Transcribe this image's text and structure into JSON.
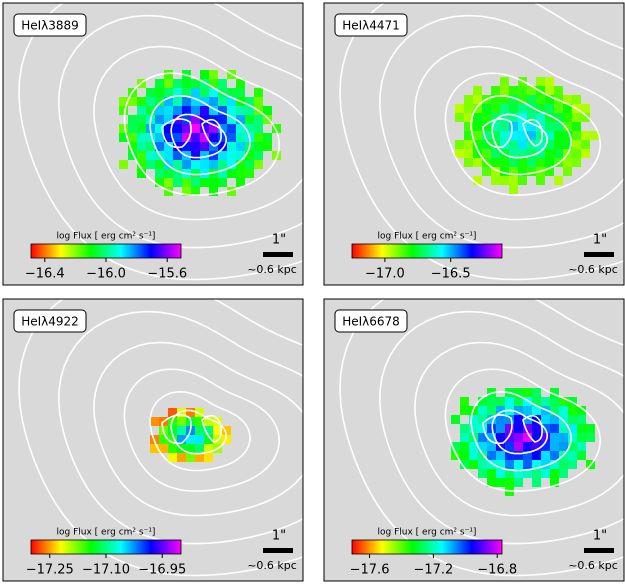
{
  "chart_data": [
    {
      "type": "image",
      "label": "HeIλ3889",
      "colorbar_label": "log  Flux [ erg cm² s⁻¹]",
      "clim": [
        -16.49,
        -15.51
      ],
      "cticks": [
        {
          "value": -16.4,
          "label": "−16.4"
        },
        {
          "value": -16.0,
          "label": "−16.0"
        },
        {
          "value": -15.6,
          "label": "−15.6"
        }
      ],
      "cmap_colors": [
        "#ff0000",
        "#ffff00",
        "#00ff00",
        "#00ffff",
        "#0000ff",
        "#ff00ff"
      ],
      "scalebar_label": "1\"",
      "scale_text": "~0.6 kpc"
    },
    {
      "type": "image",
      "label": "HeIλ4471",
      "colorbar_label": "log  Flux [ erg cm² s⁻¹]",
      "clim": [
        -17.25,
        -16.11
      ],
      "cticks": [
        {
          "value": -17.0,
          "label": "−17.0"
        },
        {
          "value": -16.5,
          "label": "−16.5"
        }
      ],
      "cmap_colors": [
        "#ff0000",
        "#ffff00",
        "#00ff00",
        "#00ffff",
        "#0000ff",
        "#ff00ff"
      ],
      "scalebar_label": "1\"",
      "scale_text": "~0.6 kpc"
    },
    {
      "type": "image",
      "label": "HeIλ4922",
      "colorbar_label": "log  Flux [ erg cm² s⁻¹]",
      "clim": [
        -17.3,
        -16.9
      ],
      "cticks": [
        {
          "value": -17.25,
          "label": "−17.25"
        },
        {
          "value": -17.1,
          "label": "−17.10"
        },
        {
          "value": -16.95,
          "label": "−16.95"
        }
      ],
      "cmap_colors": [
        "#ff0000",
        "#ffff00",
        "#00ff00",
        "#00ffff",
        "#0000ff",
        "#ff00ff"
      ],
      "scalebar_label": "1\"",
      "scale_text": "~0.6 kpc"
    },
    {
      "type": "image",
      "label": "HeIλ6678",
      "colorbar_label": "log  Flux [ erg cm² s⁻¹]",
      "clim": [
        -17.71,
        -16.77
      ],
      "cticks": [
        {
          "value": -17.6,
          "label": "−17.6"
        },
        {
          "value": -17.2,
          "label": "−17.2"
        },
        {
          "value": -16.8,
          "label": "−16.8"
        }
      ],
      "cmap_colors": [
        "#ff0000",
        "#ffff00",
        "#00ff00",
        "#00ffff",
        "#0000ff",
        "#ff00ff"
      ],
      "scalebar_label": "1\"",
      "scale_text": "~0.6 kpc"
    }
  ]
}
